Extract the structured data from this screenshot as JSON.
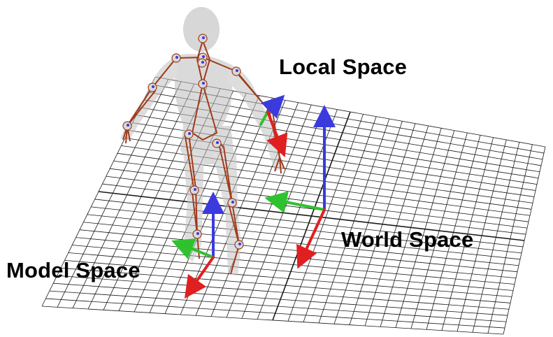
{
  "labels": {
    "local": "Local Space",
    "world": "World Space",
    "model": "Model Space"
  },
  "colors": {
    "x_axis": "#e02020",
    "y_axis": "#2fc22f",
    "z_axis": "#3a3adf",
    "grid": "#1a1a1a",
    "bone": "#a03a1a",
    "body": "#bdbdbd"
  },
  "icons": {
    "world_axes": "world-axes-gizmo",
    "model_axes": "model-axes-gizmo",
    "local_axes": "local-axes-gizmo",
    "character": "skinned-character-with-skeleton"
  }
}
